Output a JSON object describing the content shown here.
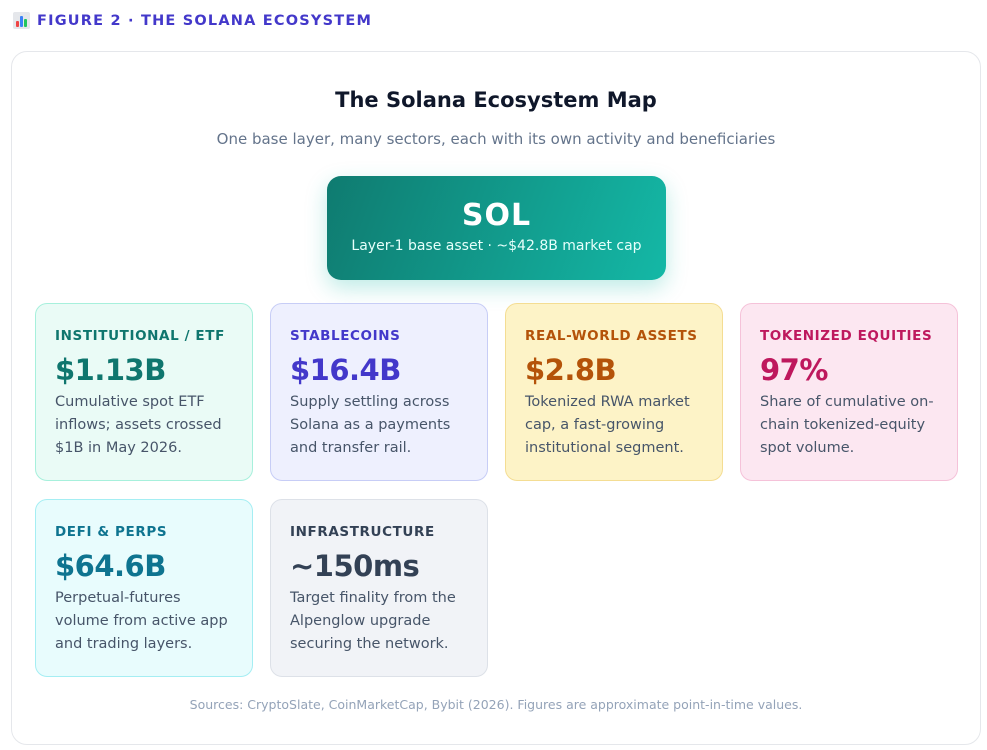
{
  "figure_label": "FIGURE 2 · THE SOLANA ECOSYSTEM",
  "figure_icon": "bar-chart-icon",
  "title": "The Solana Ecosystem Map",
  "subtitle": "One base layer, many sectors, each with its own activity and beneficiaries",
  "base": {
    "name": "SOL",
    "description": "Layer-1 base asset · ~$42.8B market cap"
  },
  "sectors": [
    {
      "label": "INSTITUTIONAL / ETF",
      "value": "$1.13B",
      "description": "Cumulative spot ETF inflows; assets crossed $1B in May 2026.",
      "color": "#0f766e"
    },
    {
      "label": "STABLECOINS",
      "value": "$16.4B",
      "description": "Supply settling across Solana as a payments and transfer rail.",
      "color": "#4338ca"
    },
    {
      "label": "REAL-WORLD ASSETS",
      "value": "$2.8B",
      "description": "Tokenized RWA market cap, a fast-growing institutional segment.",
      "color": "#b45309"
    },
    {
      "label": "TOKENIZED EQUITIES",
      "value": "97%",
      "description": "Share of cumulative on-chain tokenized-equity spot volume.",
      "color": "#be185d"
    },
    {
      "label": "DEFI & PERPS",
      "value": "$64.6B",
      "description": "Perpetual-futures volume from active app and trading layers.",
      "color": "#0e7490"
    },
    {
      "label": "INFRASTRUCTURE",
      "value": "~150ms",
      "description": "Target finality from the Alpenglow upgrade securing the network.",
      "color": "#334155"
    }
  ],
  "sources": "Sources: CryptoSlate, CoinMarketCap, Bybit (2026). Figures are approximate point-in-time values.",
  "colors": {
    "accent": "#4338ca",
    "sol_gradient_start": "#0f7b70",
    "sol_gradient_end": "#14b8a6"
  }
}
